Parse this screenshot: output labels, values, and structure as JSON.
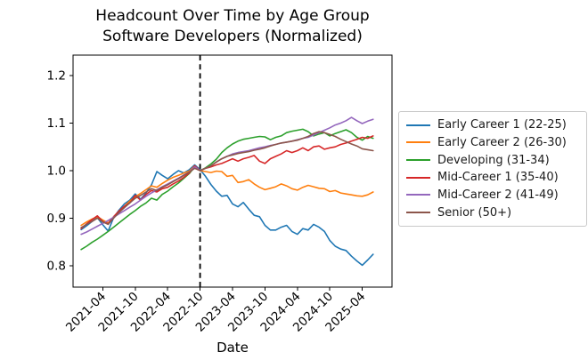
{
  "chart_data": {
    "type": "line",
    "title": "Headcount Over Time by Age Group\nSoftware Developers (Normalized)",
    "title_line1": "Headcount Over Time by Age Group",
    "title_line2": "Software Developers (Normalized)",
    "xlabel": "Date",
    "ylabel": "",
    "grid": false,
    "legend_position": "outside-right",
    "x_tick_labels": [
      "2021-04",
      "2021-10",
      "2022-04",
      "2022-10",
      "2023-04",
      "2023-10",
      "2024-04",
      "2024-10",
      "2025-04"
    ],
    "y_ticks": [
      0.8,
      0.9,
      1.0,
      1.1,
      1.2
    ],
    "ylim": [
      0.755,
      1.243
    ],
    "vline": {
      "date": "2022-10",
      "style": "dashed",
      "color": "#000000"
    },
    "x": [
      "2020-12",
      "2021-01",
      "2021-02",
      "2021-03",
      "2021-04",
      "2021-05",
      "2021-06",
      "2021-07",
      "2021-08",
      "2021-09",
      "2021-10",
      "2021-11",
      "2021-12",
      "2022-01",
      "2022-02",
      "2022-03",
      "2022-04",
      "2022-05",
      "2022-06",
      "2022-07",
      "2022-08",
      "2022-09",
      "2022-10",
      "2022-11",
      "2022-12",
      "2023-01",
      "2023-02",
      "2023-03",
      "2023-04",
      "2023-05",
      "2023-06",
      "2023-07",
      "2023-08",
      "2023-09",
      "2023-10",
      "2023-11",
      "2023-12",
      "2024-01",
      "2024-02",
      "2024-03",
      "2024-04",
      "2024-05",
      "2024-06",
      "2024-07",
      "2024-08",
      "2024-09",
      "2024-10",
      "2024-11",
      "2024-12",
      "2025-01",
      "2025-02",
      "2025-03",
      "2025-04",
      "2025-05",
      "2025-06"
    ],
    "series": [
      {
        "name": "Early Career 1 (22-25)",
        "color": "#1f77b4",
        "values": [
          0.876,
          0.884,
          0.893,
          0.901,
          0.886,
          0.873,
          0.901,
          0.917,
          0.93,
          0.938,
          0.951,
          0.94,
          0.953,
          0.97,
          0.998,
          0.99,
          0.983,
          0.992,
          1.0,
          0.995,
          1.002,
          1.012,
          1.002,
          0.988,
          0.971,
          0.957,
          0.946,
          0.948,
          0.93,
          0.924,
          0.933,
          0.919,
          0.906,
          0.903,
          0.885,
          0.875,
          0.875,
          0.881,
          0.885,
          0.872,
          0.866,
          0.878,
          0.875,
          0.887,
          0.881,
          0.872,
          0.853,
          0.841,
          0.835,
          0.832,
          0.82,
          0.81,
          0.801,
          0.812,
          0.824
        ]
      },
      {
        "name": "Early Career 2 (26-30)",
        "color": "#ff7f0e",
        "values": [
          0.885,
          0.892,
          0.898,
          0.903,
          0.896,
          0.89,
          0.902,
          0.913,
          0.925,
          0.936,
          0.945,
          0.952,
          0.96,
          0.968,
          0.965,
          0.973,
          0.98,
          0.986,
          0.99,
          0.995,
          0.999,
          1.01,
          1.0,
          0.998,
          0.996,
          0.999,
          0.998,
          0.988,
          0.99,
          0.975,
          0.977,
          0.981,
          0.972,
          0.965,
          0.96,
          0.963,
          0.966,
          0.972,
          0.968,
          0.962,
          0.959,
          0.965,
          0.969,
          0.966,
          0.963,
          0.962,
          0.956,
          0.958,
          0.953,
          0.951,
          0.949,
          0.947,
          0.946,
          0.949,
          0.955
        ]
      },
      {
        "name": "Developing (31-34)",
        "color": "#2ca02c",
        "values": [
          0.834,
          0.841,
          0.849,
          0.856,
          0.864,
          0.872,
          0.881,
          0.89,
          0.899,
          0.908,
          0.916,
          0.925,
          0.932,
          0.942,
          0.938,
          0.95,
          0.957,
          0.966,
          0.974,
          0.984,
          0.994,
          1.008,
          1.0,
          1.006,
          1.014,
          1.024,
          1.038,
          1.048,
          1.056,
          1.062,
          1.066,
          1.068,
          1.07,
          1.072,
          1.071,
          1.065,
          1.07,
          1.073,
          1.08,
          1.083,
          1.085,
          1.087,
          1.082,
          1.073,
          1.077,
          1.08,
          1.073,
          1.078,
          1.082,
          1.086,
          1.08,
          1.07,
          1.064,
          1.072,
          1.068
        ]
      },
      {
        "name": "Mid-Career 1 (35-40)",
        "color": "#d62728",
        "values": [
          0.878,
          0.888,
          0.897,
          0.905,
          0.893,
          0.888,
          0.903,
          0.915,
          0.925,
          0.932,
          0.948,
          0.938,
          0.95,
          0.958,
          0.955,
          0.962,
          0.965,
          0.972,
          0.978,
          0.986,
          0.995,
          1.01,
          1.0,
          1.005,
          1.008,
          1.012,
          1.015,
          1.02,
          1.025,
          1.02,
          1.025,
          1.028,
          1.032,
          1.02,
          1.015,
          1.025,
          1.03,
          1.035,
          1.042,
          1.038,
          1.042,
          1.048,
          1.042,
          1.05,
          1.052,
          1.045,
          1.048,
          1.05,
          1.055,
          1.058,
          1.062,
          1.066,
          1.07,
          1.068,
          1.073
        ]
      },
      {
        "name": "Mid-Career 2 (41-49)",
        "color": "#9467bd",
        "values": [
          0.866,
          0.871,
          0.877,
          0.883,
          0.889,
          0.895,
          0.902,
          0.909,
          0.916,
          0.923,
          0.93,
          0.938,
          0.946,
          0.953,
          0.96,
          0.966,
          0.972,
          0.978,
          0.984,
          0.991,
          0.997,
          1.008,
          1.0,
          1.005,
          1.01,
          1.018,
          1.025,
          1.03,
          1.035,
          1.038,
          1.04,
          1.042,
          1.045,
          1.048,
          1.05,
          1.053,
          1.055,
          1.058,
          1.06,
          1.062,
          1.065,
          1.068,
          1.07,
          1.075,
          1.08,
          1.085,
          1.09,
          1.096,
          1.1,
          1.105,
          1.112,
          1.105,
          1.099,
          1.104,
          1.108
        ]
      },
      {
        "name": "Senior (50+)",
        "color": "#8c564b",
        "values": [
          0.88,
          0.887,
          0.893,
          0.9,
          0.892,
          0.887,
          0.9,
          0.912,
          0.922,
          0.932,
          0.942,
          0.948,
          0.955,
          0.962,
          0.958,
          0.965,
          0.97,
          0.977,
          0.983,
          0.99,
          0.997,
          1.005,
          1.0,
          1.005,
          1.01,
          1.018,
          1.025,
          1.03,
          1.033,
          1.036,
          1.038,
          1.04,
          1.043,
          1.045,
          1.048,
          1.052,
          1.055,
          1.058,
          1.06,
          1.062,
          1.064,
          1.068,
          1.072,
          1.078,
          1.082,
          1.08,
          1.076,
          1.072,
          1.066,
          1.061,
          1.056,
          1.052,
          1.046,
          1.044,
          1.042
        ]
      }
    ]
  }
}
